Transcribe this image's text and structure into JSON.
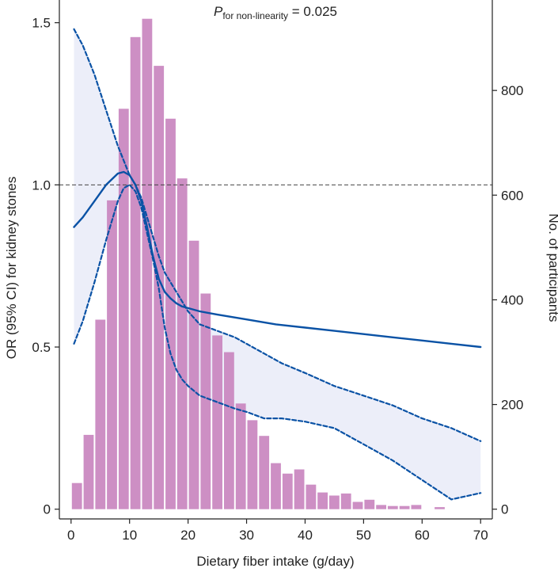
{
  "chart_data": {
    "type": "line",
    "annotation": {
      "p_main": "P",
      "p_sub": "for non-linearity",
      "p_value": " = 0.025"
    },
    "xlabel": "Dietary fiber intake (g/day)",
    "ylabel_left": "OR (95% CI) for kidney stones",
    "ylabel_right": "No. of participants",
    "xlim": [
      -2,
      72
    ],
    "ylim_left": [
      -0.03,
      1.57
    ],
    "ylim_right": [
      -18.6,
      972.8
    ],
    "x_ticks": [
      "0",
      "10",
      "20",
      "30",
      "40",
      "50",
      "60",
      "70"
    ],
    "x_tick_values": [
      0,
      10,
      20,
      30,
      40,
      50,
      60,
      70
    ],
    "y_left_ticks": [
      "0",
      "0.5",
      "1.0",
      "1.5"
    ],
    "y_left_tick_values": [
      0,
      0.5,
      1.0,
      1.5
    ],
    "y_right_ticks": [
      "0",
      "200",
      "400",
      "600",
      "800"
    ],
    "y_right_tick_values": [
      0,
      200,
      400,
      600,
      800
    ],
    "reference_line": 1.0,
    "histogram": {
      "bin_centers": [
        1,
        3,
        5,
        7,
        9,
        11,
        13,
        15,
        17,
        19,
        21,
        23,
        25,
        27,
        29,
        31,
        33,
        35,
        37,
        39,
        41,
        43,
        45,
        47,
        49,
        51,
        53,
        55,
        57,
        59,
        61,
        63
      ],
      "counts": [
        50,
        142,
        362,
        590,
        765,
        902,
        937,
        847,
        746,
        632,
        513,
        412,
        332,
        300,
        202,
        170,
        140,
        88,
        68,
        76,
        47,
        32,
        26,
        30,
        14,
        18,
        8,
        6,
        6,
        8,
        0,
        4
      ],
      "color": "#c986bf"
    },
    "series": [
      {
        "role": "estimate",
        "color": "#0a52a5",
        "x": [
          0.5,
          2,
          4,
          6,
          8,
          9,
          10,
          11,
          12,
          13,
          14,
          15,
          16,
          17,
          18,
          19,
          20,
          22,
          25,
          30,
          35,
          40,
          45,
          50,
          55,
          60,
          65,
          70
        ],
        "y": [
          0.87,
          0.9,
          0.95,
          1.0,
          1.035,
          1.04,
          1.03,
          1.0,
          0.95,
          0.87,
          0.78,
          0.71,
          0.67,
          0.65,
          0.635,
          0.625,
          0.62,
          0.61,
          0.6,
          0.585,
          0.57,
          0.56,
          0.55,
          0.54,
          0.53,
          0.52,
          0.51,
          0.5
        ]
      },
      {
        "role": "upper_ci",
        "color": "#0a52a5",
        "x": [
          0.5,
          2,
          4,
          6,
          8,
          10,
          11,
          12,
          13,
          14,
          15,
          16,
          17,
          18,
          19,
          20,
          22,
          25,
          28,
          30,
          33,
          36,
          40,
          45,
          50,
          55,
          60,
          65,
          70
        ],
        "y": [
          1.48,
          1.43,
          1.34,
          1.23,
          1.12,
          1.03,
          1.0,
          0.96,
          0.9,
          0.84,
          0.78,
          0.73,
          0.7,
          0.67,
          0.64,
          0.61,
          0.57,
          0.55,
          0.53,
          0.51,
          0.48,
          0.45,
          0.42,
          0.38,
          0.35,
          0.32,
          0.28,
          0.25,
          0.21
        ]
      },
      {
        "role": "lower_ci",
        "color": "#0a52a5",
        "x": [
          0.5,
          2,
          4,
          6,
          8,
          9,
          10,
          11,
          12,
          13,
          14,
          15,
          16,
          17,
          18,
          19,
          20,
          22,
          25,
          28,
          30,
          33,
          36,
          40,
          45,
          50,
          55,
          60,
          65,
          70
        ],
        "y": [
          0.51,
          0.58,
          0.7,
          0.83,
          0.95,
          0.99,
          1.0,
          0.98,
          0.93,
          0.85,
          0.77,
          0.68,
          0.56,
          0.48,
          0.43,
          0.4,
          0.38,
          0.35,
          0.33,
          0.31,
          0.3,
          0.28,
          0.28,
          0.27,
          0.25,
          0.2,
          0.15,
          0.09,
          0.03,
          0.05
        ]
      }
    ],
    "band_color": "#eceef9",
    "grid": false,
    "legend": "none"
  }
}
